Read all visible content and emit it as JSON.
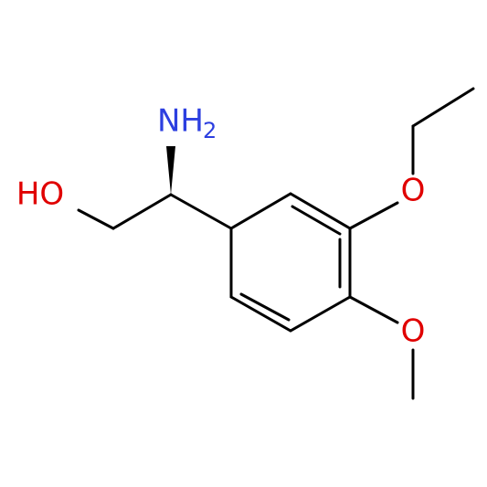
{
  "atoms": {
    "hydroxyl": "HO",
    "amine": "NH",
    "amine_subscript": "2",
    "ethoxy_oxygen": "O",
    "methoxy_oxygen": "O"
  }
}
